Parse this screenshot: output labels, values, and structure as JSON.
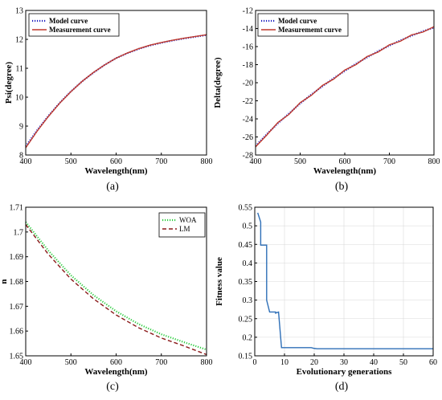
{
  "chart_data": [
    {
      "panel": "(a)",
      "type": "line",
      "xlabel": "Wavelength(nm)",
      "ylabel": "Psi(degree)",
      "xlim": [
        400,
        800
      ],
      "ylim": [
        8,
        13
      ],
      "xticks": [
        "400",
        "500",
        "600",
        "700",
        "800"
      ],
      "yticks": [
        "8",
        "9",
        "10",
        "11",
        "12",
        "13"
      ],
      "grid": false,
      "legend_position": "top-left",
      "x": [
        400,
        425,
        450,
        475,
        500,
        525,
        550,
        575,
        600,
        625,
        650,
        675,
        700,
        725,
        750,
        775,
        800
      ],
      "series": [
        {
          "name": "Model curve",
          "color": "#1f1fbf",
          "style": "dotted",
          "values": [
            8.3,
            8.85,
            9.35,
            9.8,
            10.2,
            10.55,
            10.85,
            11.12,
            11.35,
            11.52,
            11.67,
            11.79,
            11.88,
            11.96,
            12.03,
            12.09,
            12.15
          ]
        },
        {
          "name": "Measurement curve",
          "color": "#c0392b",
          "style": "solid",
          "values": [
            8.25,
            8.82,
            9.33,
            9.79,
            10.19,
            10.55,
            10.86,
            11.12,
            11.35,
            11.53,
            11.68,
            11.8,
            11.89,
            11.97,
            12.04,
            12.1,
            12.16
          ]
        }
      ]
    },
    {
      "panel": "(b)",
      "type": "line",
      "xlabel": "Wavelength(nm)",
      "ylabel": "Delta(degree)",
      "xlim": [
        400,
        800
      ],
      "ylim": [
        -28,
        -12
      ],
      "xticks": [
        "400",
        "500",
        "600",
        "700",
        "800"
      ],
      "yticks": [
        "-28",
        "-26",
        "-24",
        "-22",
        "-20",
        "-18",
        "-16",
        "-14",
        "-12"
      ],
      "grid": false,
      "legend_position": "top-left",
      "x": [
        400,
        425,
        450,
        475,
        500,
        525,
        550,
        575,
        600,
        625,
        650,
        675,
        700,
        725,
        750,
        775,
        800
      ],
      "series": [
        {
          "name": "Model curve",
          "color": "#1f1fbf",
          "style": "dotted",
          "values": [
            -27.0,
            -25.7,
            -24.5,
            -23.4,
            -22.3,
            -21.3,
            -20.4,
            -19.5,
            -18.7,
            -17.9,
            -17.2,
            -16.5,
            -15.9,
            -15.3,
            -14.8,
            -14.3,
            -13.9
          ]
        },
        {
          "name": "Measurememt curve",
          "color": "#c0392b",
          "style": "solid",
          "values": [
            -27.1,
            -25.8,
            -24.4,
            -23.5,
            -22.2,
            -21.4,
            -20.3,
            -19.6,
            -18.6,
            -18.0,
            -17.1,
            -16.6,
            -15.8,
            -15.4,
            -14.7,
            -14.4,
            -13.8
          ]
        }
      ]
    },
    {
      "panel": "(c)",
      "type": "line",
      "xlabel": "Wavelength(nm)",
      "ylabel": "n",
      "xlim": [
        400,
        800
      ],
      "ylim": [
        1.65,
        1.71
      ],
      "xticks": [
        "400",
        "500",
        "600",
        "700",
        "800"
      ],
      "yticks": [
        "1.65",
        "1.66",
        "1.67",
        "1.68",
        "1.69",
        "1.7",
        "1.71"
      ],
      "grid": false,
      "legend_position": "top-right",
      "x": [
        400,
        450,
        500,
        550,
        600,
        650,
        700,
        750,
        800
      ],
      "series": [
        {
          "name": "WOA",
          "color": "#2ecc40",
          "style": "dotted",
          "values": [
            1.704,
            1.6925,
            1.6825,
            1.6745,
            1.668,
            1.6628,
            1.6587,
            1.6555,
            1.6525
          ]
        },
        {
          "name": "LM",
          "color": "#8b1a1a",
          "style": "dashed",
          "values": [
            1.703,
            1.691,
            1.681,
            1.673,
            1.6665,
            1.6613,
            1.6572,
            1.654,
            1.6505
          ]
        }
      ]
    },
    {
      "panel": "(d)",
      "type": "line",
      "xlabel": "Evolutionary generations",
      "ylabel": "Fitness value",
      "xlim": [
        0,
        60
      ],
      "ylim": [
        0.15,
        0.55
      ],
      "xticks": [
        "0",
        "10",
        "20",
        "30",
        "40",
        "50",
        "60"
      ],
      "yticks": [
        "0.15",
        "0.2",
        "0.25",
        "0.3",
        "0.35",
        "0.4",
        "0.45",
        "0.5",
        "0.55"
      ],
      "grid": true,
      "x": [
        1,
        2,
        2,
        3,
        4,
        4,
        5,
        6,
        7,
        7,
        8,
        9,
        10,
        11,
        12,
        13,
        14,
        15,
        16,
        17,
        18,
        19,
        20,
        21,
        30,
        40,
        50,
        60
      ],
      "series": [
        {
          "color": "#2e6fb7",
          "style": "solid",
          "values": [
            0.535,
            0.51,
            0.448,
            0.448,
            0.448,
            0.3,
            0.268,
            0.268,
            0.268,
            0.265,
            0.268,
            0.172,
            0.172,
            0.172,
            0.172,
            0.172,
            0.172,
            0.172,
            0.172,
            0.172,
            0.172,
            0.172,
            0.17,
            0.169,
            0.169,
            0.169,
            0.169,
            0.169
          ]
        }
      ]
    }
  ]
}
